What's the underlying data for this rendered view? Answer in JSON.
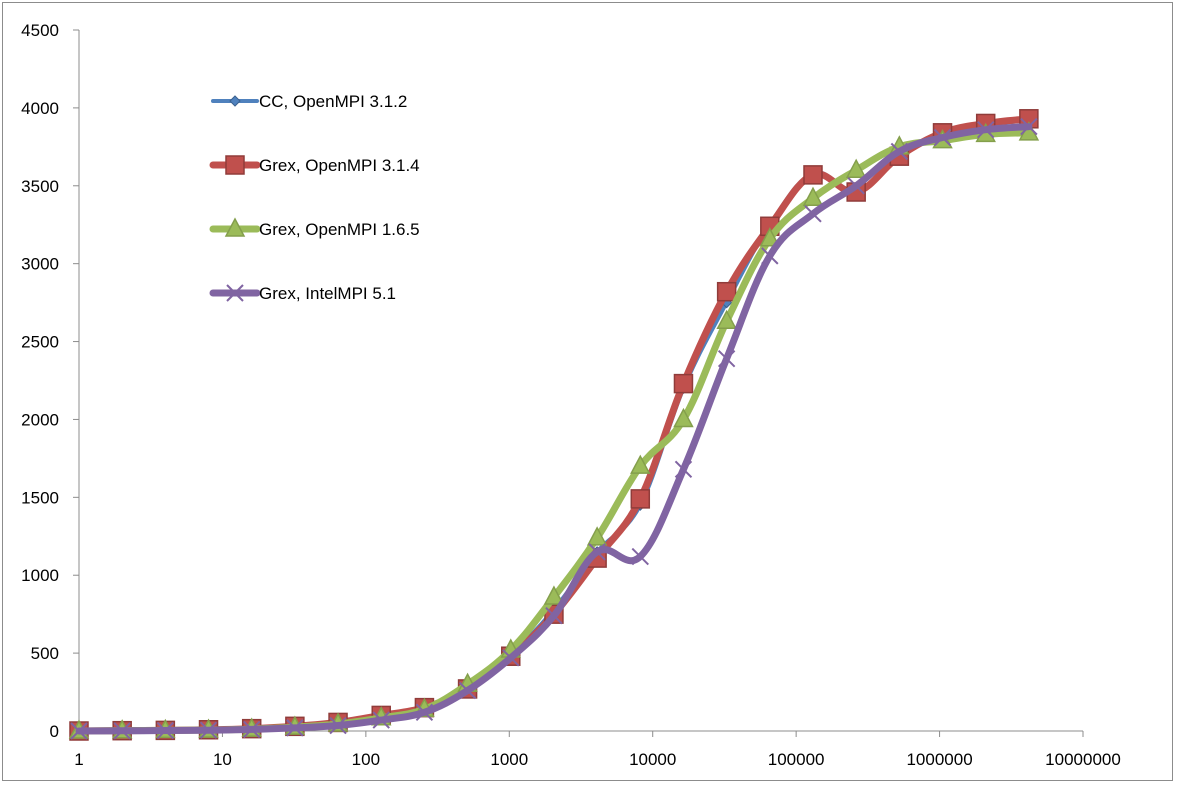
{
  "chart_data": {
    "type": "line",
    "title": "",
    "xlabel": "",
    "ylabel": "",
    "x_scale": "log",
    "xlim": [
      1,
      10000000
    ],
    "ylim": [
      0,
      4500
    ],
    "x_ticks": [
      "1",
      "10",
      "100",
      "1000",
      "10000",
      "100000",
      "1000000",
      "10000000"
    ],
    "y_ticks": [
      "0",
      "500",
      "1000",
      "1500",
      "2000",
      "2500",
      "3000",
      "3500",
      "4000",
      "4500"
    ],
    "grid": "off",
    "legend_position": "upper-left",
    "x": [
      1,
      2,
      4,
      8,
      16,
      32,
      64,
      128,
      256,
      512,
      1024,
      2048,
      4096,
      8192,
      16384,
      32768,
      65536,
      131072,
      262144,
      524288,
      1048576,
      2097152,
      4194304
    ],
    "series": [
      {
        "name": "CC, OpenMPI 3.1.2",
        "color": "#4f81bd",
        "marker": "diamond",
        "values": [
          0,
          2,
          4,
          7,
          14,
          28,
          50,
          95,
          150,
          280,
          490,
          780,
          1150,
          1450,
          2200,
          2750,
          3250,
          3580,
          3470,
          3700,
          3830,
          3890,
          3920
        ]
      },
      {
        "name": "Grex, OpenMPI 3.1.4",
        "color": "#c0504d",
        "marker": "square",
        "values": [
          0,
          2,
          4,
          8,
          15,
          30,
          55,
          100,
          150,
          270,
          480,
          750,
          1110,
          1490,
          2230,
          2820,
          3240,
          3570,
          3460,
          3690,
          3840,
          3900,
          3930
        ]
      },
      {
        "name": "Grex, OpenMPI 1.6.5",
        "color": "#9bbb59",
        "marker": "triangle",
        "values": [
          0,
          2,
          4,
          6,
          12,
          25,
          45,
          85,
          140,
          300,
          520,
          860,
          1240,
          1700,
          2000,
          2630,
          3160,
          3420,
          3600,
          3750,
          3790,
          3830,
          3840
        ]
      },
      {
        "name": "Grex, IntelMPI 5.1",
        "color": "#8064a2",
        "marker": "x",
        "values": [
          0,
          1,
          3,
          5,
          10,
          20,
          35,
          70,
          120,
          260,
          470,
          740,
          1150,
          1120,
          1680,
          2390,
          3050,
          3320,
          3500,
          3720,
          3810,
          3860,
          3880
        ]
      }
    ]
  }
}
